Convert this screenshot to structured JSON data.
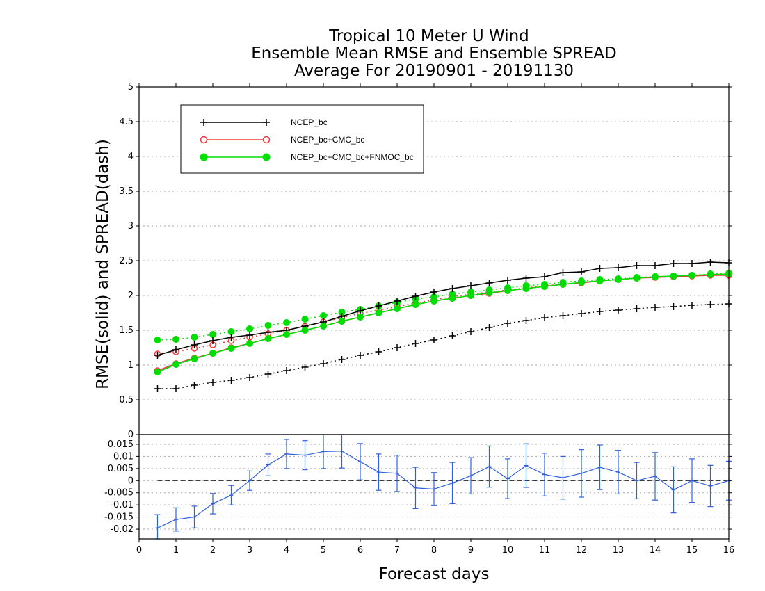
{
  "title_lines": [
    "Tropical 10 Meter U Wind",
    "Ensemble Mean RMSE and Ensemble SPREAD",
    "Average For 20190901 - 20191130"
  ],
  "colors": {
    "NCEP_bc": "#000000",
    "NCEP_bc+CMC_bc": "#ee3b3b",
    "NCEP_bc+CMC_bc+FNMOC_bc": "#00dd00",
    "difference": "#3060e0",
    "grid": "#aaaaaa"
  },
  "chart_data": [
    {
      "type": "line",
      "panel": "top",
      "xlabel": "Forecast days",
      "ylabel": "RMSE(solid) and SPREAD(dash)",
      "xlim": [
        0,
        16
      ],
      "ylim": [
        0,
        5
      ],
      "yticks": [
        "0",
        "0.5",
        "1",
        "1.5",
        "2",
        "2.5",
        "3",
        "3.5",
        "4",
        "4.5",
        "5"
      ],
      "xticks": [
        "0",
        "1",
        "2",
        "3",
        "4",
        "5",
        "6",
        "7",
        "8",
        "9",
        "10",
        "11",
        "12",
        "13",
        "14",
        "15",
        "16"
      ],
      "grid": "dotted horizontal",
      "legend_position": "top-left",
      "x": [
        0.5,
        1.0,
        1.5,
        2.0,
        2.5,
        3.0,
        3.5,
        4.0,
        4.5,
        5.0,
        5.5,
        6.0,
        6.5,
        7.0,
        7.5,
        8.0,
        8.5,
        9.0,
        9.5,
        10.0,
        10.5,
        11.0,
        11.5,
        12.0,
        12.5,
        13.0,
        13.5,
        14.0,
        14.5,
        15.0,
        15.5,
        16.0
      ],
      "series": [
        {
          "name": "NCEP_bc",
          "marker": "plus",
          "rmse": [
            1.14,
            1.22,
            1.29,
            1.35,
            1.4,
            1.43,
            1.47,
            1.5,
            1.56,
            1.62,
            1.7,
            1.78,
            1.85,
            1.92,
            1.99,
            2.05,
            2.1,
            2.14,
            2.18,
            2.22,
            2.25,
            2.27,
            2.33,
            2.34,
            2.39,
            2.4,
            2.43,
            2.43,
            2.46,
            2.46,
            2.48,
            2.47
          ],
          "spread": [
            0.66,
            0.66,
            0.71,
            0.75,
            0.78,
            0.82,
            0.87,
            0.92,
            0.97,
            1.02,
            1.08,
            1.14,
            1.19,
            1.25,
            1.31,
            1.36,
            1.42,
            1.48,
            1.54,
            1.6,
            1.64,
            1.68,
            1.71,
            1.74,
            1.77,
            1.79,
            1.81,
            1.83,
            1.84,
            1.86,
            1.87,
            1.88
          ]
        },
        {
          "name": "NCEP_bc+CMC_bc",
          "marker": "open-circle",
          "rmse": [
            0.92,
            1.02,
            1.1,
            1.17,
            1.25,
            1.31,
            1.38,
            1.44,
            1.5,
            1.56,
            1.63,
            1.69,
            1.75,
            1.81,
            1.87,
            1.92,
            1.96,
            2.0,
            2.03,
            2.07,
            2.1,
            2.13,
            2.16,
            2.18,
            2.21,
            2.23,
            2.25,
            2.26,
            2.27,
            2.28,
            2.29,
            2.29
          ],
          "spread": [
            1.16,
            1.19,
            1.24,
            1.29,
            1.35,
            1.4,
            1.45,
            1.5,
            1.56,
            1.62,
            1.68,
            1.74,
            1.79,
            1.84,
            1.89,
            1.94,
            1.98,
            2.02,
            2.05,
            2.08,
            2.11,
            2.14,
            2.16,
            2.19,
            2.21,
            2.23,
            2.25,
            2.27,
            2.28,
            2.29,
            2.3,
            2.31
          ]
        },
        {
          "name": "NCEP_bc+CMC_bc+FNMOC_bc",
          "marker": "filled-circle",
          "rmse": [
            0.9,
            1.01,
            1.09,
            1.17,
            1.24,
            1.31,
            1.38,
            1.44,
            1.5,
            1.56,
            1.63,
            1.69,
            1.75,
            1.81,
            1.87,
            1.92,
            1.96,
            2.0,
            2.04,
            2.07,
            2.1,
            2.13,
            2.16,
            2.19,
            2.21,
            2.23,
            2.25,
            2.27,
            2.28,
            2.29,
            2.3,
            2.31
          ],
          "spread": [
            1.36,
            1.37,
            1.4,
            1.44,
            1.48,
            1.52,
            1.57,
            1.61,
            1.66,
            1.71,
            1.76,
            1.8,
            1.85,
            1.9,
            1.95,
            1.98,
            2.02,
            2.05,
            2.08,
            2.11,
            2.14,
            2.16,
            2.19,
            2.21,
            2.23,
            2.24,
            2.26,
            2.27,
            2.28,
            2.29,
            2.31,
            2.32
          ]
        }
      ]
    },
    {
      "type": "line",
      "panel": "bottom",
      "xlim": [
        0,
        16
      ],
      "ylim": [
        -0.024,
        0.019
      ],
      "yticks": [
        "0.015",
        "0.01",
        "0.005",
        "0",
        "-0.005",
        "-0.01",
        "-0.015",
        "-0.02"
      ],
      "grid": "dotted horizontal",
      "x": [
        0.5,
        1.0,
        1.5,
        2.0,
        2.5,
        3.0,
        3.5,
        4.0,
        4.5,
        5.0,
        5.5,
        6.0,
        6.5,
        7.0,
        7.5,
        8.0,
        8.5,
        9.0,
        9.5,
        10.0,
        10.5,
        11.0,
        11.5,
        12.0,
        12.5,
        13.0,
        13.5,
        14.0,
        14.5,
        15.0,
        15.5,
        16.0
      ],
      "values": [
        -0.0195,
        -0.016,
        -0.015,
        -0.0095,
        -0.006,
        0.0,
        0.0065,
        0.011,
        0.0105,
        0.012,
        0.0122,
        0.0078,
        0.0035,
        0.003,
        -0.003,
        -0.0035,
        -0.001,
        0.002,
        0.0058,
        0.0008,
        0.0062,
        0.0025,
        0.0012,
        0.003,
        0.0055,
        0.0035,
        0.0,
        0.0018,
        -0.0038,
        0.0,
        -0.0022,
        0.0
      ],
      "error": [
        0.0055,
        0.0048,
        0.0045,
        0.0042,
        0.004,
        0.004,
        0.0045,
        0.006,
        0.006,
        0.007,
        0.007,
        0.0075,
        0.0075,
        0.0075,
        0.0085,
        0.0068,
        0.0085,
        0.0075,
        0.0085,
        0.0082,
        0.009,
        0.0088,
        0.0088,
        0.0098,
        0.0092,
        0.009,
        0.0075,
        0.0098,
        0.0095,
        0.009,
        0.0085,
        0.008
      ],
      "reference_line": 0
    }
  ]
}
